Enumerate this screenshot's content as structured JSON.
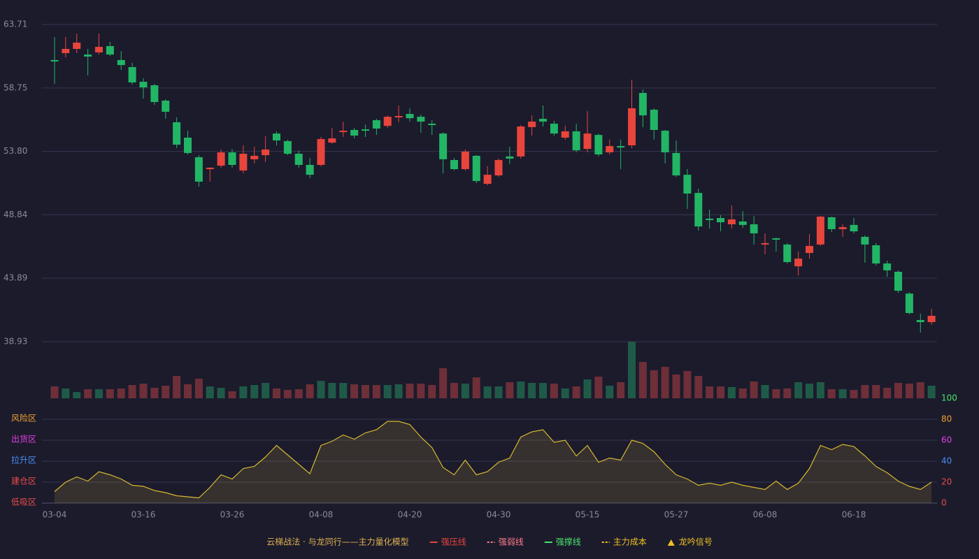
{
  "chart_data": {
    "type": "candlestick",
    "categories": [
      "03-04",
      null,
      null,
      null,
      null,
      null,
      null,
      null,
      "03-16",
      null,
      null,
      null,
      null,
      null,
      null,
      null,
      "03-26",
      null,
      null,
      null,
      null,
      null,
      null,
      null,
      "04-08",
      null,
      null,
      null,
      null,
      null,
      null,
      null,
      "04-20",
      null,
      null,
      null,
      null,
      null,
      null,
      null,
      "04-30",
      null,
      null,
      null,
      null,
      null,
      null,
      null,
      "05-15",
      null,
      null,
      null,
      null,
      null,
      null,
      null,
      "05-27",
      null,
      null,
      null,
      null,
      null,
      null,
      null,
      "06-08",
      null,
      null,
      null,
      null,
      null,
      null,
      null,
      "06-18",
      null,
      null,
      null,
      null,
      null,
      null,
      null
    ],
    "open": [
      60.93,
      61.47,
      61.8,
      61.36,
      61.53,
      62.02,
      60.93,
      60.38,
      59.23,
      58.96,
      57.76,
      56.07,
      54.87,
      53.34,
      52.41,
      52.68,
      53.72,
      52.3,
      53.18,
      53.5,
      55.19,
      54.6,
      53.61,
      52.74,
      52.74,
      54.48,
      55.3,
      55.47,
      55.52,
      56.23,
      55.79,
      56.45,
      56.72,
      56.5,
      55.96,
      55.19,
      53.12,
      52.41,
      53.45,
      51.26,
      51.92,
      53.4,
      53.4,
      55.69,
      56.34,
      55.96,
      54.87,
      55.36,
      53.99,
      55.08,
      53.72,
      54.21,
      54.27,
      58.36,
      57.05,
      55.41,
      53.67,
      51.97,
      50.55,
      48.54,
      48.59,
      48.1,
      48.32,
      48.1,
      46.52,
      47.01,
      46.52,
      44.82,
      45.86,
      46.52,
      48.65,
      47.72,
      48.05,
      47.12,
      46.46,
      45.04,
      44.39,
      42.69,
      40.62,
      40.46
    ],
    "close": [
      60.82,
      61.8,
      62.29,
      61.2,
      61.96,
      61.36,
      60.54,
      59.18,
      58.8,
      57.65,
      56.89,
      54.32,
      53.67,
      51.43,
      52.52,
      53.72,
      52.74,
      53.61,
      53.45,
      53.94,
      54.65,
      53.61,
      52.74,
      51.97,
      54.76,
      54.81,
      55.41,
      55.03,
      55.41,
      55.58,
      56.5,
      56.56,
      56.39,
      56.12,
      55.85,
      53.18,
      52.41,
      53.78,
      51.48,
      51.97,
      53.12,
      53.23,
      55.74,
      56.12,
      56.12,
      55.19,
      55.36,
      53.88,
      55.19,
      53.56,
      54.21,
      54.1,
      57.16,
      56.61,
      55.47,
      53.72,
      51.92,
      50.5,
      47.93,
      48.43,
      48.26,
      48.48,
      48.05,
      47.39,
      46.63,
      46.9,
      45.15,
      45.42,
      46.41,
      48.7,
      47.72,
      47.88,
      47.55,
      46.52,
      45.04,
      44.5,
      42.91,
      41.17,
      40.46,
      40.95
    ],
    "high": [
      62.73,
      62.73,
      63.0,
      61.8,
      63.0,
      62.35,
      61.64,
      60.71,
      59.51,
      59.07,
      57.87,
      56.45,
      55.41,
      53.5,
      52.55,
      53.94,
      53.99,
      54.27,
      54.16,
      54.98,
      55.36,
      54.71,
      53.88,
      53.28,
      54.92,
      55.63,
      56.12,
      55.63,
      55.9,
      56.34,
      56.61,
      57.38,
      57.16,
      56.67,
      56.23,
      55.3,
      53.28,
      53.94,
      53.5,
      52.63,
      53.23,
      54.16,
      55.85,
      56.61,
      57.38,
      56.18,
      55.79,
      55.96,
      56.94,
      55.19,
      54.71,
      54.71,
      59.4,
      58.63,
      57.16,
      55.47,
      54.65,
      52.41,
      50.88,
      49.24,
      48.81,
      49.57,
      49.13,
      48.75,
      47.39,
      47.06,
      46.63,
      45.97,
      47.33,
      48.75,
      48.7,
      48.1,
      48.59,
      47.23,
      46.63,
      45.26,
      44.5,
      42.8,
      41.11,
      41.49
    ],
    "low": [
      59.07,
      61.14,
      61.47,
      59.73,
      61.36,
      61.25,
      60.16,
      59.02,
      57.92,
      57.43,
      56.34,
      54.05,
      53.56,
      51.05,
      51.43,
      52.52,
      52.52,
      52.08,
      52.85,
      52.96,
      54.27,
      53.5,
      52.52,
      51.7,
      52.63,
      54.38,
      54.92,
      54.81,
      54.92,
      55.08,
      55.63,
      56.07,
      56.12,
      55.25,
      55.08,
      52.08,
      52.3,
      52.3,
      51.32,
      51.15,
      51.81,
      52.79,
      53.23,
      55.03,
      55.74,
      55.03,
      54.71,
      53.72,
      53.72,
      53.4,
      53.56,
      52.41,
      54.05,
      55.69,
      54.71,
      52.85,
      51.81,
      49.3,
      47.61,
      47.77,
      47.55,
      47.77,
      47.83,
      46.52,
      45.75,
      45.97,
      45.04,
      44.11,
      45.42,
      46.41,
      47.5,
      47.12,
      47.39,
      45.1,
      44.88,
      43.99,
      42.75,
      41.06,
      39.64,
      40.24
    ],
    "up_color": "#e8453c",
    "down_color": "#22b565",
    "ylim": [
      38.93,
      63.71
    ],
    "yticks": [
      38.93,
      43.89,
      48.84,
      {
        "value": 53.8,
        "label": "53.80"
      },
      58.75,
      63.71
    ],
    "grid": true,
    "volume": {
      "values": [
        17,
        14,
        9,
        13,
        13,
        13,
        14,
        19,
        21,
        15,
        18,
        32,
        20,
        28,
        17,
        15,
        10,
        17,
        19,
        22,
        14,
        12,
        13,
        20,
        25,
        22,
        22,
        20,
        19,
        19,
        19,
        20,
        21,
        21,
        19,
        43,
        22,
        21,
        30,
        17,
        17,
        23,
        24,
        22,
        22,
        21,
        14,
        17,
        27,
        31,
        18,
        23,
        81,
        52,
        40,
        45,
        34,
        39,
        32,
        17,
        17,
        16,
        14,
        24,
        19,
        13,
        14,
        23,
        21,
        23,
        13,
        13,
        12,
        19,
        19,
        15,
        22,
        21,
        23,
        18
      ],
      "colors": [
        "#6e2f38",
        "#1f5a48",
        "#1f5a48",
        "#6e2f38",
        "#1f5a48",
        "#6e2f38",
        "#6e2f38",
        "#6e2f38",
        "#6e2f38",
        "#6e2f38",
        "#6e2f38",
        "#6e2f38",
        "#6e2f38",
        "#6e2f38",
        "#1f5a48",
        "#1f5a48",
        "#6e2f38",
        "#1f5a48",
        "#1f5a48",
        "#1f5a48",
        "#6e2f38",
        "#6e2f38",
        "#6e2f38",
        "#6e2f38",
        "#1f5a48",
        "#1f5a48",
        "#1f5a48",
        "#6e2f38",
        "#6e2f38",
        "#6e2f38",
        "#1f5a48",
        "#1f5a48",
        "#6e2f38",
        "#6e2f38",
        "#6e2f38",
        "#6e2f38",
        "#6e2f38",
        "#1f5a48",
        "#6e2f38",
        "#1f5a48",
        "#1f5a48",
        "#6e2f38",
        "#1f5a48",
        "#1f5a48",
        "#1f5a48",
        "#6e2f38",
        "#1f5a48",
        "#6e2f38",
        "#1f5a48",
        "#6e2f38",
        "#1f5a48",
        "#6e2f38",
        "#1f5a48",
        "#6e2f38",
        "#6e2f38",
        "#6e2f38",
        "#6e2f38",
        "#6e2f38",
        "#6e2f38",
        "#6e2f38",
        "#6e2f38",
        "#1f5a48",
        "#6e2f38",
        "#6e2f38",
        "#1f5a48",
        "#6e2f38",
        "#6e2f38",
        "#1f5a48",
        "#1f5a48",
        "#1f5a48",
        "#6e2f38",
        "#1f5a48",
        "#6e2f38",
        "#6e2f38",
        "#6e2f38",
        "#6e2f38",
        "#6e2f38",
        "#6e2f38",
        "#6e2f38",
        "#1f5a48"
      ]
    },
    "indicator": {
      "values": [
        11,
        20,
        25,
        21,
        30,
        27,
        23,
        17,
        16,
        12,
        10,
        7,
        6,
        5,
        15,
        27,
        23,
        33,
        35,
        44,
        55,
        46,
        37,
        28,
        55,
        59,
        65,
        61,
        67,
        70,
        78,
        78,
        75,
        63,
        53,
        34,
        27,
        41,
        27,
        30,
        39,
        43,
        63,
        68,
        70,
        58,
        60,
        45,
        55,
        39,
        43,
        41,
        60,
        57,
        49,
        37,
        27,
        23,
        17,
        19,
        17,
        20,
        17,
        15,
        13,
        21,
        13,
        19,
        33,
        55,
        51,
        56,
        54,
        45,
        35,
        29,
        21,
        16,
        13,
        20
      ],
      "color": "#d8b830",
      "ylim": [
        0,
        100
      ],
      "yticks": [
        0,
        20,
        40,
        60,
        80,
        100
      ],
      "ytick_colors": [
        "#e84a4a",
        "#e84a4a",
        "#4a8cf0",
        "#e040e0",
        "#f0a030",
        "#4be36a"
      ],
      "zones": [
        {
          "label": "风险区",
          "value": 80,
          "color": "#f0a030"
        },
        {
          "label": "出货区",
          "value": 60,
          "color": "#e040e0"
        },
        {
          "label": "拉升区",
          "value": 40,
          "color": "#4a8cf0"
        },
        {
          "label": "建仓区",
          "value": 20,
          "color": "#e84a4a"
        },
        {
          "label": "低吸区",
          "value": 0,
          "color": "#e84a4a"
        }
      ]
    },
    "legend": {
      "title": "云梯战法 · 与龙同行——主力量化模型",
      "title_color": "#e0b050",
      "items": [
        {
          "name": "强压线",
          "color": "#e8453c",
          "style": "solid"
        },
        {
          "name": "强弱线",
          "color": "#ff7b8a",
          "style": "dashed"
        },
        {
          "name": "强撑线",
          "color": "#4be36a",
          "style": "solid"
        },
        {
          "name": "主力成本",
          "color": "#f0c020",
          "style": "dashed"
        },
        {
          "name": "龙吟信号",
          "color": "#f0c020",
          "style": "triangle"
        }
      ]
    }
  }
}
